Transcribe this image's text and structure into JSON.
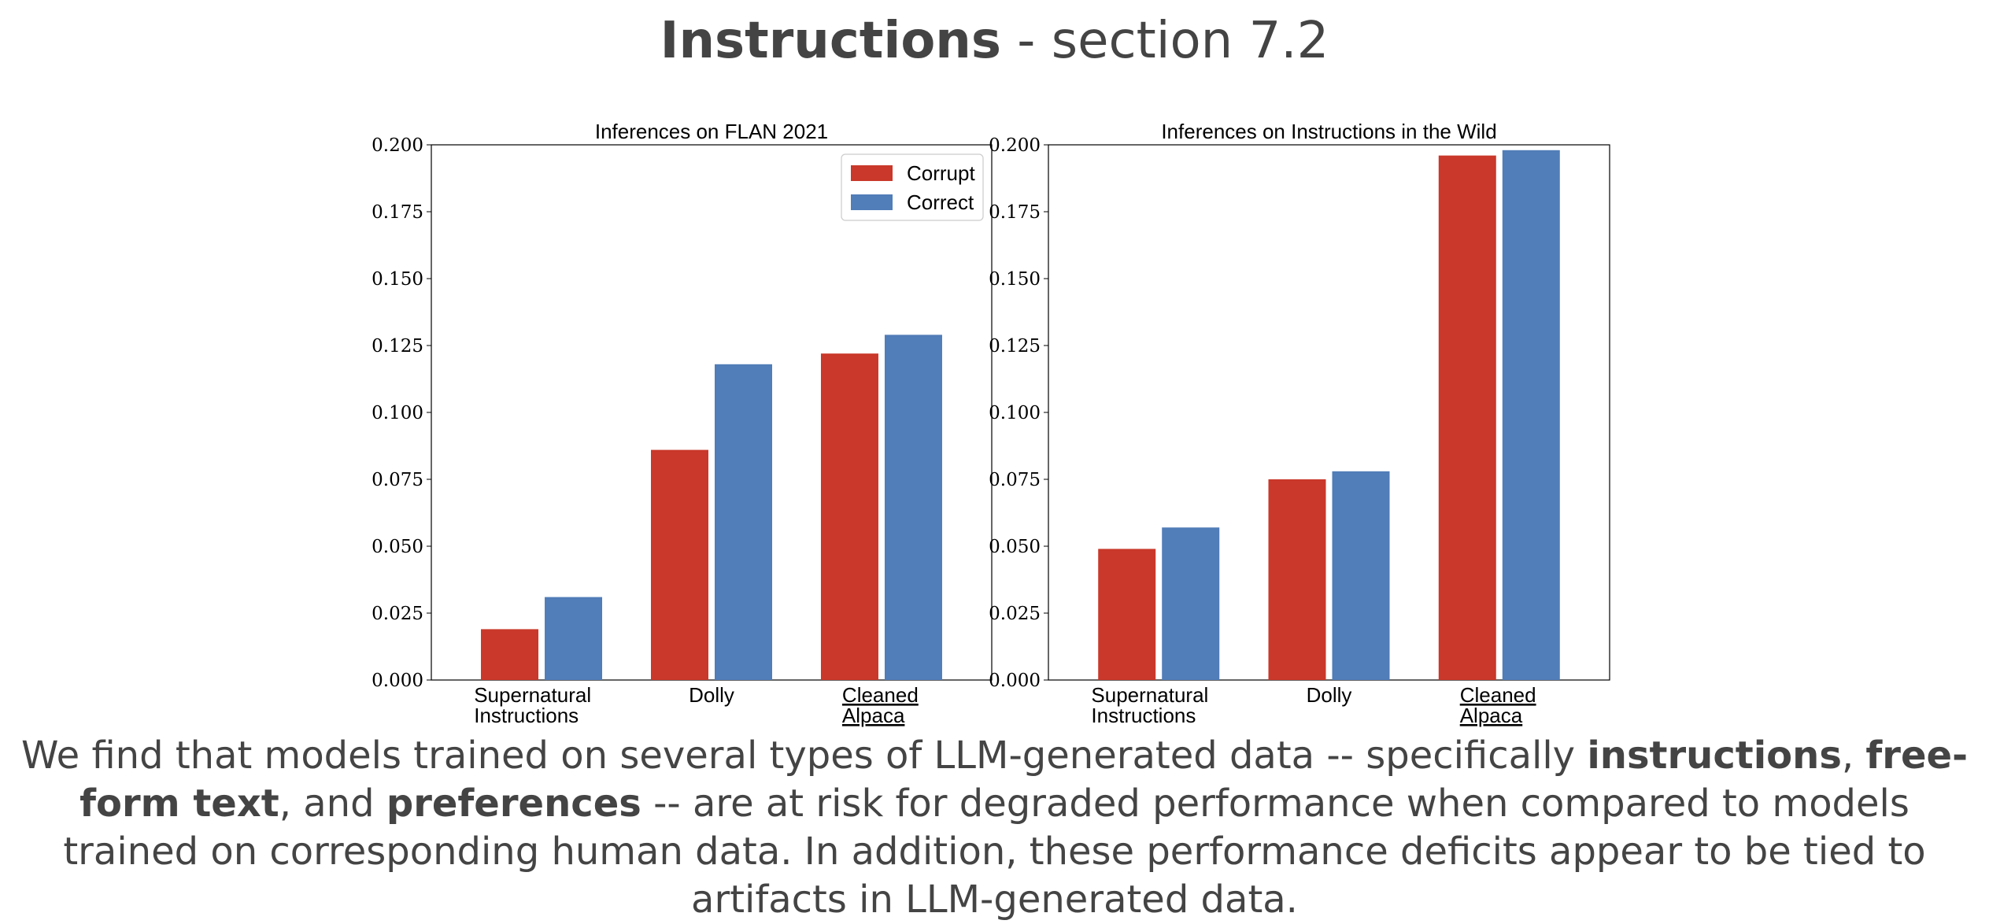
{
  "header": {
    "title_bold": "Instructions",
    "title_rest": " - section 7.2"
  },
  "caption": {
    "part1": "We find that models trained on several types of LLM-generated data -- specifically ",
    "bold1": "instructions",
    "part2": ", ",
    "bold2": "free-form text",
    "part3": ", and ",
    "bold3": "preferences",
    "part4": " -- are at risk for degraded performance when compared to models trained on corresponding human data. In addition, these performance deficits appear to be tied to artifacts in LLM-generated data."
  },
  "colors": {
    "corrupt": "#C9382A",
    "correct": "#517DB8"
  },
  "chart_data": [
    {
      "type": "bar",
      "title": "Inferences on FLAN 2021",
      "categories": [
        [
          "Supernatural",
          "Instructions"
        ],
        [
          "Dolly"
        ],
        [
          "Cleaned",
          "Alpaca"
        ]
      ],
      "underlined_category_index": 2,
      "series": [
        {
          "name": "Corrupt",
          "values": [
            0.019,
            0.086,
            0.122
          ]
        },
        {
          "name": "Correct",
          "values": [
            0.031,
            0.118,
            0.129
          ]
        }
      ],
      "ylim": [
        0,
        0.2
      ],
      "yticks": [
        "0.000",
        "0.025",
        "0.050",
        "0.075",
        "0.100",
        "0.125",
        "0.150",
        "0.175",
        "0.200"
      ],
      "legend": "top-right",
      "grid": false
    },
    {
      "type": "bar",
      "title": "Inferences on Instructions in the Wild",
      "categories": [
        [
          "Supernatural",
          "Instructions"
        ],
        [
          "Dolly"
        ],
        [
          "Cleaned",
          "Alpaca"
        ]
      ],
      "underlined_category_index": 2,
      "series": [
        {
          "name": "Corrupt",
          "values": [
            0.049,
            0.075,
            0.196
          ]
        },
        {
          "name": "Correct",
          "values": [
            0.057,
            0.078,
            0.198
          ]
        }
      ],
      "ylim": [
        0,
        0.2
      ],
      "yticks": [
        "0.000",
        "0.025",
        "0.050",
        "0.075",
        "0.100",
        "0.125",
        "0.150",
        "0.175",
        "0.200"
      ],
      "legend": "none",
      "grid": false
    }
  ]
}
